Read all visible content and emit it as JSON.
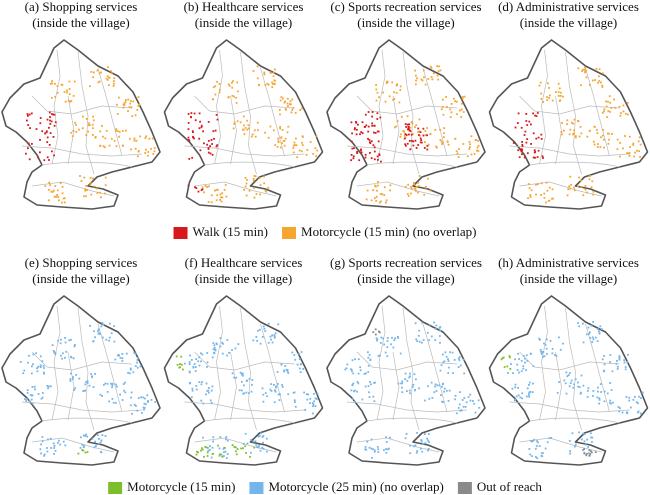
{
  "panels": [
    {
      "title": [
        "(a) Shopping services",
        "(inside the village)"
      ]
    },
    {
      "title": [
        "(b) Healthcare services",
        "(inside the village)"
      ]
    },
    {
      "title": [
        "(c) Sports recreation services",
        "(inside the village)"
      ]
    },
    {
      "title": [
        "(d) Administrative services",
        "(inside the village)"
      ]
    },
    {
      "title": [
        "(e) Shopping services",
        "(inside the village)"
      ]
    },
    {
      "title": [
        "(f) Healthcare services",
        "(inside the village)"
      ]
    },
    {
      "title": [
        "(g) Sports recreation services",
        "(inside the village)"
      ]
    },
    {
      "title": [
        "(h) Administrative services",
        "(inside the village)"
      ]
    }
  ],
  "legends": [
    {
      "items": [
        {
          "label": "Walk (15 min)",
          "color": "#d7191c"
        },
        {
          "label": "Motorcycle (15 min) (no overlap)",
          "color": "#f5a631"
        }
      ]
    },
    {
      "items": [
        {
          "label": "Motorcycle (15 min)",
          "color": "#7cbf2a"
        },
        {
          "label": "Motorcycle (25 min) (no overlap)",
          "color": "#74b6ec"
        },
        {
          "label": "Out of reach",
          "color": "#8a8a8a"
        }
      ]
    }
  ]
}
